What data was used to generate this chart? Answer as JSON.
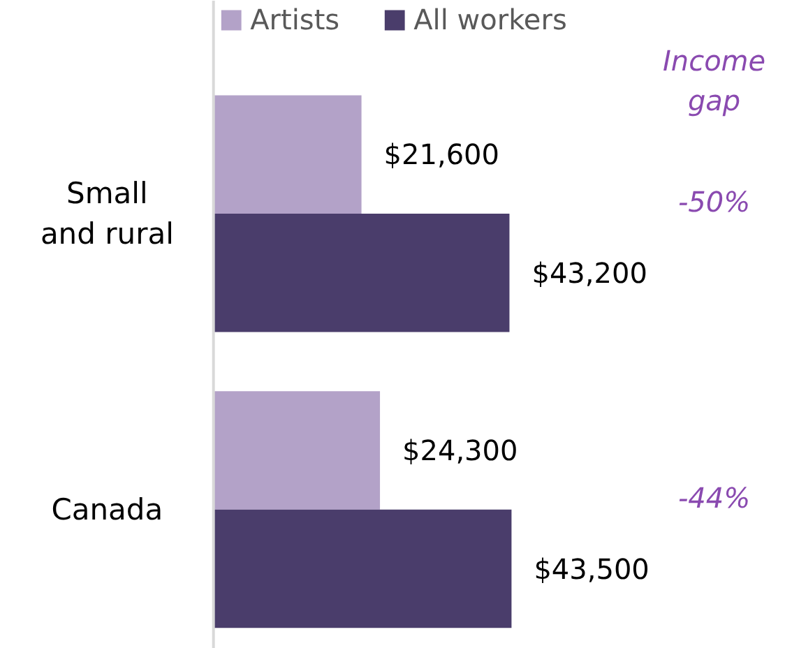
{
  "chart_data": {
    "type": "bar",
    "orientation": "horizontal",
    "categories": [
      "Small and rural",
      "Canada"
    ],
    "series": [
      {
        "name": "Artists",
        "color": "#b3a2c8",
        "values": [
          21600,
          24300
        ],
        "value_labels": [
          "$21,600",
          "$24,300"
        ]
      },
      {
        "name": "All workers",
        "color": "#4a3d6b",
        "values": [
          43200,
          43500
        ],
        "value_labels": [
          "$43,200",
          "$43,500"
        ]
      }
    ],
    "annotations": [
      "Income gap",
      "-50%",
      "-44%"
    ],
    "legend": "top"
  }
}
